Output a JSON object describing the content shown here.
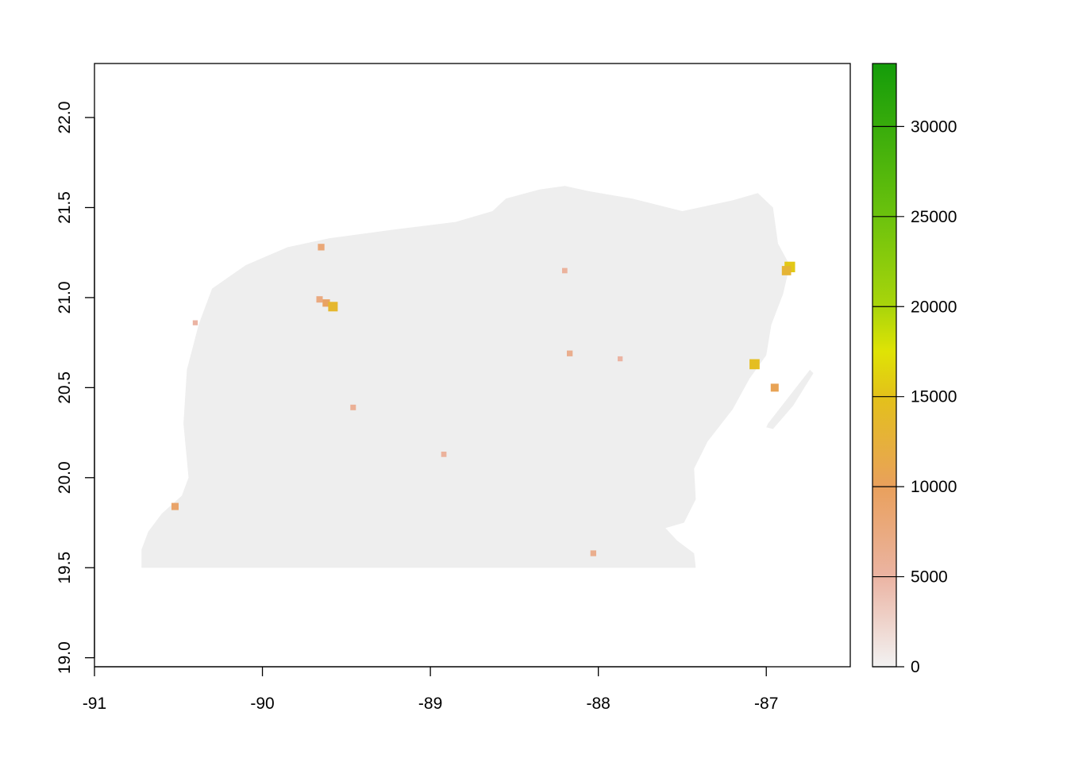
{
  "map": {
    "type": "raster",
    "x_axis": {
      "range": [
        -91,
        -86.5
      ],
      "ticks": [
        "-91",
        "-90",
        "-89",
        "-88",
        "-87"
      ],
      "tick_values": [
        -91,
        -90,
        -89,
        -88,
        -87
      ]
    },
    "y_axis": {
      "range": [
        18.95,
        22.3
      ],
      "ticks": [
        "19.0",
        "19.5",
        "20.0",
        "20.5",
        "21.0",
        "21.5",
        "22.0"
      ],
      "tick_values": [
        19.0,
        19.5,
        20.0,
        20.5,
        21.0,
        21.5,
        22.0
      ]
    },
    "land_color": "#eeeeee",
    "legend": {
      "position": "right",
      "range": [
        0,
        33500
      ],
      "ticks": [
        "0",
        "5000",
        "10000",
        "15000",
        "20000",
        "25000",
        "30000"
      ],
      "tick_values": [
        0,
        5000,
        10000,
        15000,
        20000,
        25000,
        30000
      ],
      "color_stops": [
        {
          "value": 0,
          "color": "#f2f2f2"
        },
        {
          "value": 5000,
          "color": "#ebb4a3"
        },
        {
          "value": 10000,
          "color": "#e9a05c"
        },
        {
          "value": 15000,
          "color": "#e3c11a"
        },
        {
          "value": 17500,
          "color": "#dfe305"
        },
        {
          "value": 20000,
          "color": "#a9d50b"
        },
        {
          "value": 25000,
          "color": "#6cc20d"
        },
        {
          "value": 33500,
          "color": "#149c0a"
        }
      ]
    },
    "land_outline": [
      [
        -90.72,
        19.5
      ],
      [
        -87.42,
        19.5
      ],
      [
        -87.43,
        19.58
      ],
      [
        -87.53,
        19.65
      ],
      [
        -87.6,
        19.72
      ],
      [
        -87.49,
        19.75
      ],
      [
        -87.42,
        19.88
      ],
      [
        -87.43,
        20.05
      ],
      [
        -87.35,
        20.2
      ],
      [
        -87.2,
        20.38
      ],
      [
        -87.1,
        20.55
      ],
      [
        -87.0,
        20.68
      ],
      [
        -86.97,
        20.85
      ],
      [
        -86.9,
        21.02
      ],
      [
        -86.86,
        21.18
      ],
      [
        -86.93,
        21.3
      ],
      [
        -86.96,
        21.5
      ],
      [
        -87.05,
        21.58
      ],
      [
        -87.2,
        21.54
      ],
      [
        -87.5,
        21.48
      ],
      [
        -87.8,
        21.55
      ],
      [
        -88.05,
        21.59
      ],
      [
        -88.2,
        21.62
      ],
      [
        -88.35,
        21.6
      ],
      [
        -88.55,
        21.55
      ],
      [
        -88.63,
        21.48
      ],
      [
        -88.85,
        21.42
      ],
      [
        -89.2,
        21.38
      ],
      [
        -89.6,
        21.33
      ],
      [
        -89.85,
        21.28
      ],
      [
        -90.1,
        21.18
      ],
      [
        -90.3,
        21.05
      ],
      [
        -90.38,
        20.85
      ],
      [
        -90.45,
        20.6
      ],
      [
        -90.47,
        20.3
      ],
      [
        -90.44,
        20.0
      ],
      [
        -90.48,
        19.9
      ],
      [
        -90.6,
        19.8
      ],
      [
        -90.68,
        19.7
      ],
      [
        -90.72,
        19.6
      ]
    ],
    "island_outline": [
      [
        -86.99,
        20.3
      ],
      [
        -86.74,
        20.6
      ],
      [
        -86.72,
        20.58
      ],
      [
        -86.84,
        20.4
      ],
      [
        -86.96,
        20.27
      ],
      [
        -87.0,
        20.28
      ]
    ],
    "hotspots": [
      {
        "lon": -89.62,
        "lat": 20.97,
        "value": 9500
      },
      {
        "lon": -89.58,
        "lat": 20.95,
        "value": 13500
      },
      {
        "lon": -89.66,
        "lat": 20.99,
        "value": 7500
      },
      {
        "lon": -86.86,
        "lat": 21.17,
        "value": 15500
      },
      {
        "lon": -86.88,
        "lat": 21.15,
        "value": 13000
      },
      {
        "lon": -87.07,
        "lat": 20.63,
        "value": 14500
      },
      {
        "lon": -86.95,
        "lat": 20.5,
        "value": 10500
      },
      {
        "lon": -90.52,
        "lat": 19.84,
        "value": 9000
      },
      {
        "lon": -89.65,
        "lat": 21.28,
        "value": 8000
      },
      {
        "lon": -88.17,
        "lat": 20.69,
        "value": 6500
      },
      {
        "lon": -88.2,
        "lat": 21.15,
        "value": 5500
      },
      {
        "lon": -88.03,
        "lat": 19.58,
        "value": 6500
      },
      {
        "lon": -89.46,
        "lat": 20.39,
        "value": 6000
      },
      {
        "lon": -88.92,
        "lat": 20.13,
        "value": 5500
      },
      {
        "lon": -87.87,
        "lat": 20.66,
        "value": 5000
      },
      {
        "lon": -90.4,
        "lat": 20.86,
        "value": 5000
      }
    ]
  }
}
